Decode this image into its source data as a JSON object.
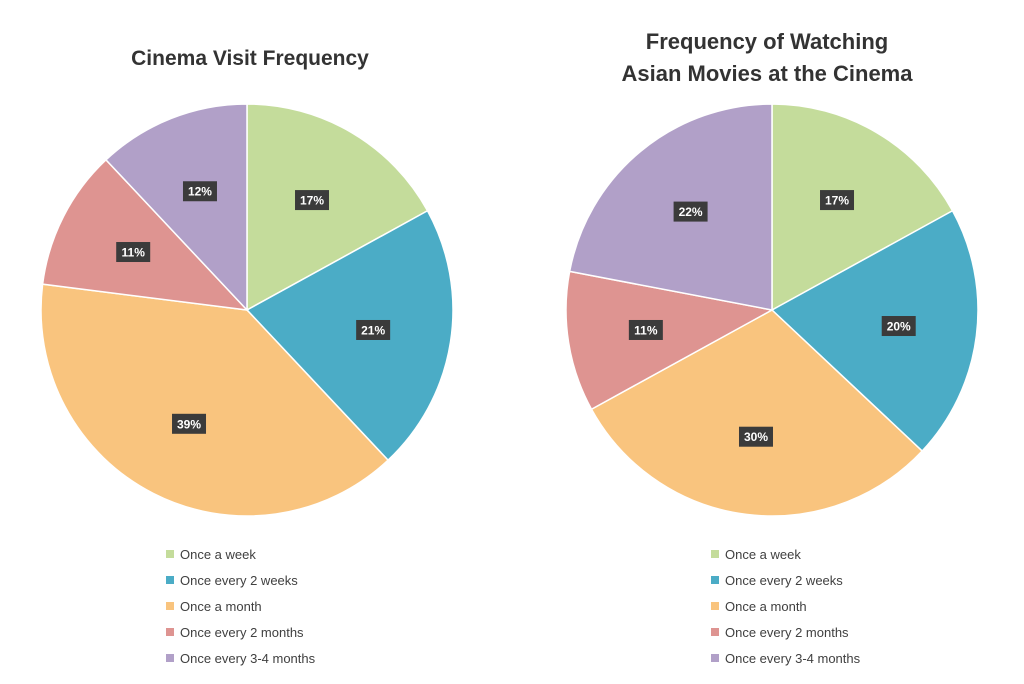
{
  "chart_data": [
    {
      "type": "pie",
      "title": "Cinema Visit Frequency",
      "categories": [
        "Once a week",
        "Once every 2 weeks",
        "Once a month",
        "Once every 2 months",
        "Once every 3-4 months"
      ],
      "values": [
        17,
        21,
        39,
        11,
        12
      ],
      "labels": [
        "17%",
        "21%",
        "39%",
        "11%",
        "12%"
      ],
      "colors": [
        "#c4dc9b",
        "#4bacc6",
        "#f9c47e",
        "#de9491",
        "#b1a0c8"
      ],
      "legend": "bottom"
    },
    {
      "type": "pie",
      "title": "Frequency of Watching Asian Movies at the Cinema",
      "title_lines": [
        "Frequency of Watching",
        "Asian Movies at the Cinema"
      ],
      "categories": [
        "Once a week",
        "Once every 2 weeks",
        "Once a month",
        "Once every 2 months",
        "Once every 3-4 months"
      ],
      "values": [
        17,
        20,
        30,
        11,
        22
      ],
      "labels": [
        "17%",
        "20%",
        "30%",
        "11%",
        "22%"
      ],
      "colors": [
        "#c4dc9b",
        "#4bacc6",
        "#f9c47e",
        "#de9491",
        "#b1a0c8"
      ],
      "legend": "bottom"
    }
  ]
}
